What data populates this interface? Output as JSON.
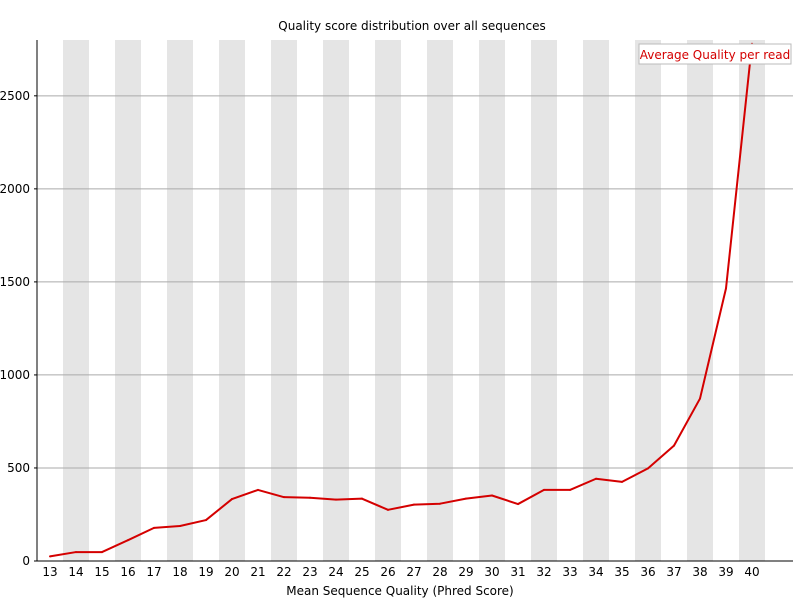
{
  "chart_data": {
    "type": "line",
    "title": "Quality score distribution over all sequences",
    "xlabel": "Mean Sequence Quality (Phred Score)",
    "ylabel": "",
    "x": [
      13,
      14,
      15,
      16,
      17,
      18,
      19,
      20,
      21,
      22,
      23,
      24,
      25,
      26,
      27,
      28,
      29,
      30,
      31,
      32,
      33,
      34,
      35,
      36,
      37,
      38,
      39,
      40
    ],
    "series": [
      {
        "name": "Average Quality per read",
        "color": "#d40000",
        "values": [
          25,
          48,
          48,
          112,
          178,
          188,
          220,
          333,
          382,
          343,
          340,
          330,
          335,
          275,
          303,
          308,
          335,
          352,
          306,
          382,
          382,
          442,
          425,
          498,
          620,
          873,
          1465,
          2780
        ]
      }
    ],
    "ylim": [
      0,
      2800
    ],
    "yticks": [
      0,
      500,
      1000,
      1500,
      2000,
      2500
    ],
    "grid": true,
    "legend_position": "top-right",
    "colors": {
      "band": "#e5e5e5",
      "gridline": "#aaaaaa",
      "axis": "#000000",
      "legend_border": "#bbbbbb"
    }
  }
}
